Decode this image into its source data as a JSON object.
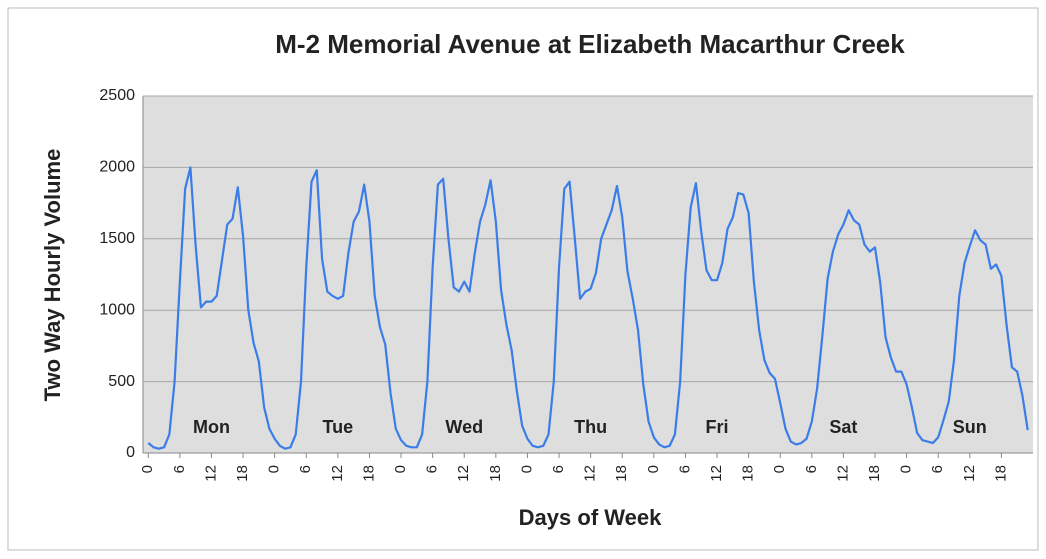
{
  "chart_data": {
    "type": "line",
    "title": "M-2 Memorial Avenue at Elizabeth Macarthur Creek",
    "y_label": "Two Way Hourly Volume",
    "x_label": "Days of Week",
    "day_labels": [
      "Mon",
      "Tue",
      "Wed",
      "Thu",
      "Fri",
      "Sat",
      "Sun"
    ],
    "x": [
      0,
      1,
      2,
      3,
      4,
      5,
      6,
      7,
      8,
      9,
      10,
      11,
      12,
      13,
      14,
      15,
      16,
      17,
      18,
      19,
      20,
      21,
      22,
      23,
      24,
      25,
      26,
      27,
      28,
      29,
      30,
      31,
      32,
      33,
      34,
      35,
      36,
      37,
      38,
      39,
      40,
      41,
      42,
      43,
      44,
      45,
      46,
      47,
      48,
      49,
      50,
      51,
      52,
      53,
      54,
      55,
      56,
      57,
      58,
      59,
      60,
      61,
      62,
      63,
      64,
      65,
      66,
      67,
      68,
      69,
      70,
      71,
      72,
      73,
      74,
      75,
      76,
      77,
      78,
      79,
      80,
      81,
      82,
      83,
      84,
      85,
      86,
      87,
      88,
      89,
      90,
      91,
      92,
      93,
      94,
      95,
      96,
      97,
      98,
      99,
      100,
      101,
      102,
      103,
      104,
      105,
      106,
      107,
      108,
      109,
      110,
      111,
      112,
      113,
      114,
      115,
      116,
      117,
      118,
      119,
      120,
      121,
      122,
      123,
      124,
      125,
      126,
      127,
      128,
      129,
      130,
      131,
      132,
      133,
      134,
      135,
      136,
      137,
      138,
      139,
      140,
      141,
      142,
      143,
      144,
      145,
      146,
      147,
      148,
      149,
      150,
      151,
      152,
      153,
      154,
      155,
      156,
      157,
      158,
      159,
      160,
      161,
      162,
      163,
      164,
      165,
      166,
      167
    ],
    "series": [
      {
        "name": "Two Way Hourly Volume",
        "color": "#3b7de8",
        "values": [
          70,
          40,
          30,
          40,
          130,
          500,
          1200,
          1850,
          2000,
          1450,
          1020,
          1060,
          1060,
          1100,
          1350,
          1600,
          1640,
          1860,
          1520,
          1000,
          770,
          640,
          320,
          170,
          100,
          50,
          30,
          40,
          130,
          500,
          1300,
          1900,
          1980,
          1360,
          1130,
          1100,
          1080,
          1100,
          1400,
          1620,
          1690,
          1880,
          1620,
          1100,
          880,
          760,
          420,
          170,
          90,
          50,
          40,
          40,
          130,
          500,
          1300,
          1880,
          1920,
          1500,
          1160,
          1130,
          1200,
          1130,
          1400,
          1620,
          1740,
          1910,
          1620,
          1140,
          900,
          720,
          430,
          190,
          100,
          50,
          40,
          50,
          130,
          500,
          1300,
          1850,
          1900,
          1500,
          1080,
          1130,
          1150,
          1260,
          1500,
          1600,
          1700,
          1870,
          1650,
          1270,
          1080,
          860,
          480,
          220,
          110,
          60,
          40,
          50,
          130,
          500,
          1250,
          1720,
          1890,
          1550,
          1280,
          1210,
          1210,
          1330,
          1570,
          1650,
          1820,
          1810,
          1680,
          1200,
          860,
          650,
          560,
          520,
          350,
          170,
          80,
          60,
          70,
          100,
          220,
          450,
          820,
          1220,
          1410,
          1530,
          1600,
          1700,
          1630,
          1600,
          1460,
          1410,
          1440,
          1190,
          810,
          670,
          570,
          570,
          480,
          320,
          140,
          90,
          80,
          70,
          110,
          230,
          360,
          650,
          1100,
          1330,
          1450,
          1560,
          1490,
          1460,
          1290,
          1320,
          1240,
          890,
          600,
          570,
          400,
          160
        ]
      }
    ],
    "xlim": [
      -1,
      168
    ],
    "xticks": [
      0,
      6,
      12,
      18,
      {
        "value": 24,
        "label": "0"
      },
      {
        "value": 30,
        "label": "6"
      },
      {
        "value": 36,
        "label": "12"
      },
      {
        "value": 42,
        "label": "18"
      },
      {
        "value": 48,
        "label": "0"
      },
      {
        "value": 54,
        "label": "6"
      },
      {
        "value": 60,
        "label": "12"
      },
      {
        "value": 66,
        "label": "18"
      },
      {
        "value": 72,
        "label": "0"
      },
      {
        "value": 78,
        "label": "6"
      },
      {
        "value": 84,
        "label": "12"
      },
      {
        "value": 90,
        "label": "18"
      },
      {
        "value": 96,
        "label": "0"
      },
      {
        "value": 102,
        "label": "6"
      },
      {
        "value": 108,
        "label": "12"
      },
      {
        "value": 114,
        "label": "18"
      },
      {
        "value": 120,
        "label": "0"
      },
      {
        "value": 126,
        "label": "6"
      },
      {
        "value": 132,
        "label": "12"
      },
      {
        "value": 138,
        "label": "18"
      },
      {
        "value": 144,
        "label": "0"
      },
      {
        "value": 150,
        "label": "6"
      },
      {
        "value": 156,
        "label": "12"
      },
      {
        "value": 162,
        "label": "18"
      }
    ],
    "ylim": [
      0,
      2500
    ],
    "yticks": [
      0,
      500,
      1000,
      1500,
      2000,
      2500
    ],
    "grid": true
  }
}
